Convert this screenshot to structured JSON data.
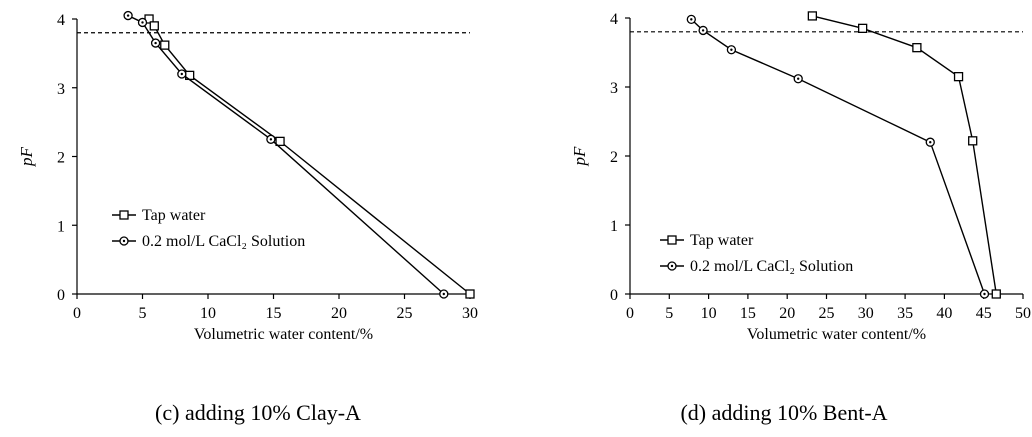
{
  "chart_data": [
    {
      "type": "line",
      "caption": "(c) adding 10% Clay-A",
      "xlabel": "Volumetric water content/%",
      "ylabel": "pF",
      "xlim": [
        0,
        30
      ],
      "ylim": [
        0,
        4
      ],
      "xticks": [
        "0",
        "5",
        "10",
        "15",
        "20",
        "25",
        "30"
      ],
      "yticks": [
        "0",
        "1",
        "2",
        "3",
        "4"
      ],
      "reference_line": 3.8,
      "legend": [
        "Tap water",
        "0.2 mol/L CaCl₂ Solution"
      ],
      "series": [
        {
          "name": "Tap water",
          "marker": "square",
          "x": [
            5.5,
            5.9,
            6.7,
            8.6,
            15.5,
            30.0
          ],
          "y": [
            4.0,
            3.9,
            3.62,
            3.18,
            2.22,
            0.0
          ]
        },
        {
          "name": "0.2 mol/L CaCl₂ Solution",
          "marker": "circle",
          "x": [
            3.9,
            5.0,
            6.0,
            8.0,
            14.8,
            28.0
          ],
          "y": [
            4.05,
            3.95,
            3.65,
            3.2,
            2.25,
            0.0
          ]
        }
      ]
    },
    {
      "type": "line",
      "caption": "(d) adding 10% Bent-A",
      "xlabel": "Volumetric water content/%",
      "ylabel": "pF",
      "xlim": [
        0,
        50
      ],
      "ylim": [
        0,
        4
      ],
      "xticks": [
        "0",
        "5",
        "10",
        "15",
        "20",
        "25",
        "30",
        "35",
        "40",
        "45",
        "50"
      ],
      "yticks": [
        "0",
        "1",
        "2",
        "3",
        "4"
      ],
      "reference_line": 3.8,
      "legend": [
        "Tap water",
        "0.2 mol/L CaCl₂ Solution"
      ],
      "series": [
        {
          "name": "Tap water",
          "marker": "square",
          "x": [
            23.2,
            29.6,
            36.5,
            41.8,
            43.6,
            46.6
          ],
          "y": [
            4.03,
            3.85,
            3.57,
            3.15,
            2.22,
            0.0
          ]
        },
        {
          "name": "0.2 mol/L CaCl₂ Solution",
          "marker": "circle",
          "x": [
            7.8,
            9.3,
            12.9,
            21.4,
            38.2,
            45.1
          ],
          "y": [
            3.98,
            3.82,
            3.54,
            3.12,
            2.2,
            0.0
          ]
        }
      ]
    }
  ]
}
